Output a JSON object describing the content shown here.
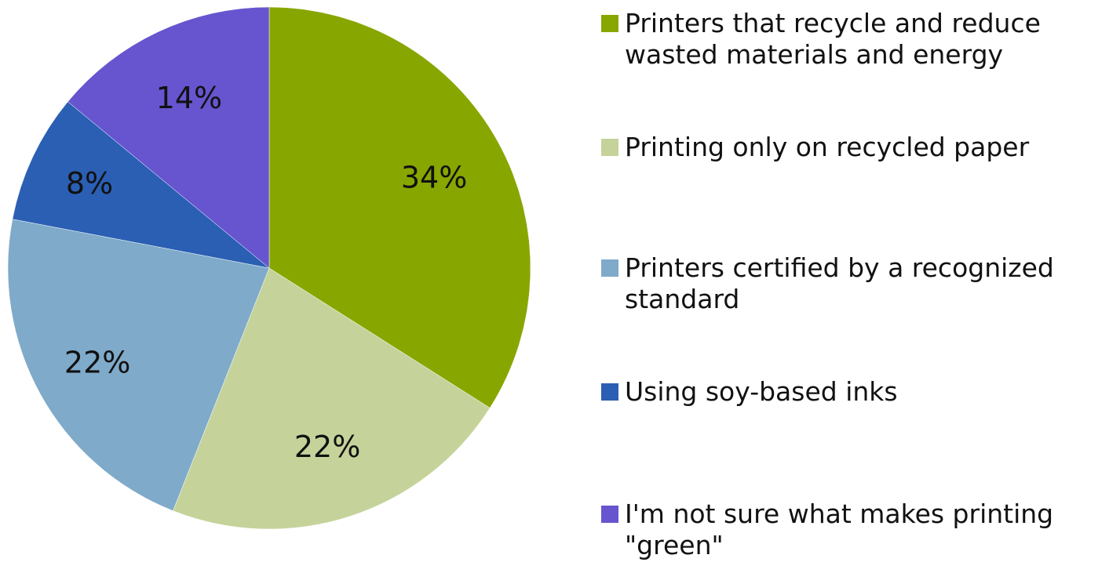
{
  "chart_data": {
    "type": "pie",
    "title": "",
    "start_angle_deg": 0,
    "direction": "clockwise",
    "slices": [
      {
        "label": "Printers that recycle and reduce wasted materials and energy",
        "value": 34,
        "value_label": "34%",
        "color": "#88A600"
      },
      {
        "label": "Printing only on recycled paper",
        "value": 22,
        "value_label": "22%",
        "color": "#C5D39A"
      },
      {
        "label": "Printers certified by a recognized standard",
        "value": 22,
        "value_label": "22%",
        "color": "#7FAACA"
      },
      {
        "label": "Using soy-based inks",
        "value": 8,
        "value_label": "8%",
        "color": "#2A5FB3"
      },
      {
        "label": "I'm not sure what makes printing \"green\"",
        "value": 14,
        "value_label": "14%",
        "color": "#6655CF"
      }
    ],
    "legend_placement": "right"
  }
}
